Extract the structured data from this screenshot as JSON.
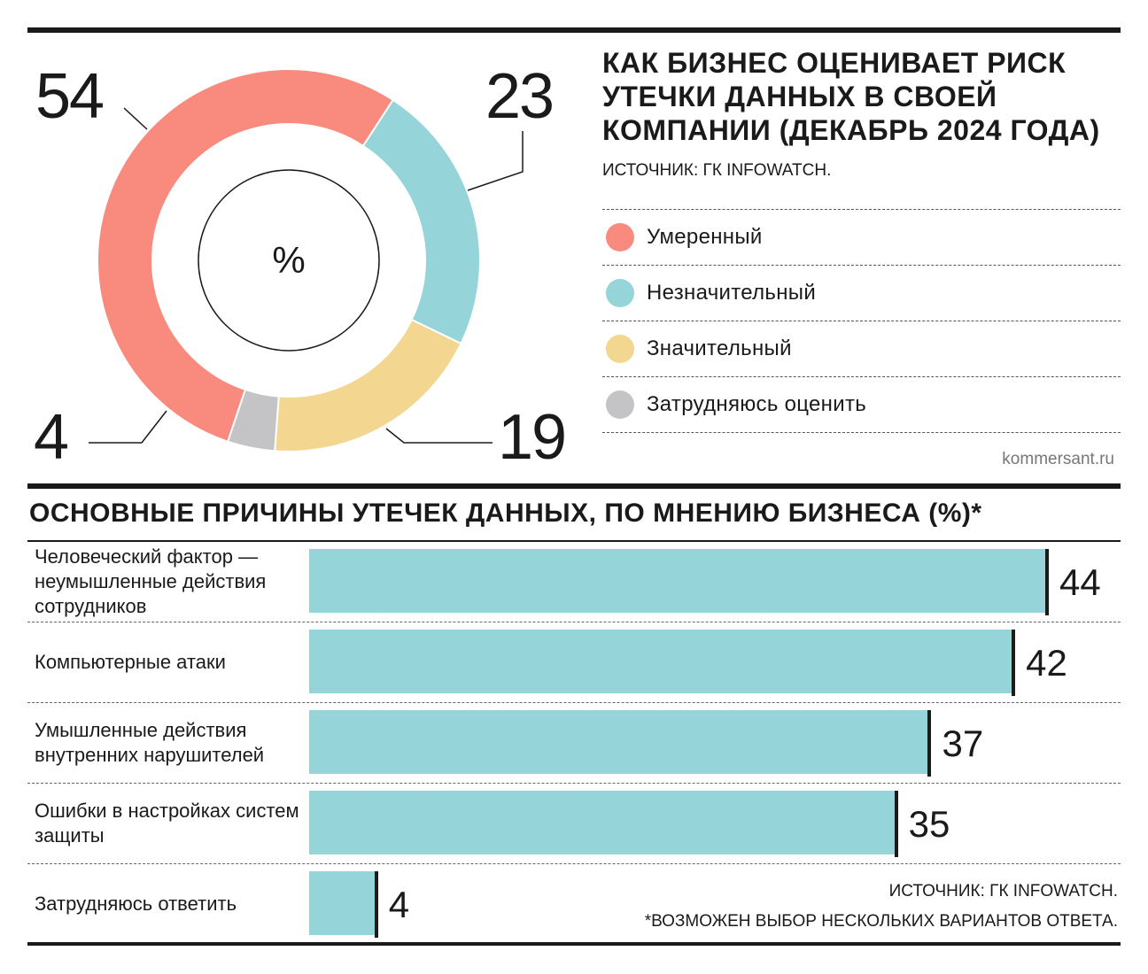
{
  "donut": {
    "center_label": "%",
    "title": "КАК БИЗНЕС ОЦЕНИВАЕТ РИСК УТЕЧКИ ДАННЫХ В СВОЕЙ КОМПАНИИ (ДЕКАБРЬ 2024 ГОДА)",
    "source": "ИСТОЧНИК: ГК INFOWATCH."
  },
  "legend": [
    {
      "label": "Умеренный",
      "color": "#f98b7e"
    },
    {
      "label": "Незначительный",
      "color": "#95d4d9"
    },
    {
      "label": "Значительный",
      "color": "#f3d690"
    },
    {
      "label": "Затрудняюсь оценить",
      "color": "#c4c4c6"
    }
  ],
  "site": "kommersant.ru",
  "bars": {
    "title": "ОСНОВНЫЕ ПРИЧИНЫ УТЕЧЕК ДАННЫХ, ПО МНЕНИЮ БИЗНЕСА (%)*",
    "source": "ИСТОЧНИК: ГК INFOWATCH.",
    "footnote": "*ВОЗМОЖЕН ВЫБОР НЕСКОЛЬКИХ ВАРИАНТОВ ОТВЕТА."
  },
  "chart_data": [
    {
      "type": "pie",
      "title": "КАК БИЗНЕС ОЦЕНИВАЕТ РИСК УТЕЧКИ ДАННЫХ В СВОЕЙ КОМПАНИИ (ДЕКАБРЬ 2024 ГОДА)",
      "unit": "%",
      "categories": [
        "Умеренный",
        "Незначительный",
        "Значительный",
        "Затрудняюсь оценить"
      ],
      "values": [
        54,
        23,
        19,
        4
      ],
      "colors": [
        "#f98b7e",
        "#95d4d9",
        "#f3d690",
        "#c4c4c6"
      ]
    },
    {
      "type": "bar",
      "title": "ОСНОВНЫЕ ПРИЧИНЫ УТЕЧЕК ДАННЫХ, ПО МНЕНИЮ БИЗНЕСА (%)*",
      "categories": [
        "Человеческий фактор — неумышленные действия сотрудников",
        "Компьютерные атаки",
        "Умышленные действия внутренних нарушителей",
        "Ошибки в настройках систем защиты",
        "Затрудняюсь ответить"
      ],
      "values": [
        44,
        42,
        37,
        35,
        4
      ],
      "color": "#95d4d9"
    }
  ]
}
